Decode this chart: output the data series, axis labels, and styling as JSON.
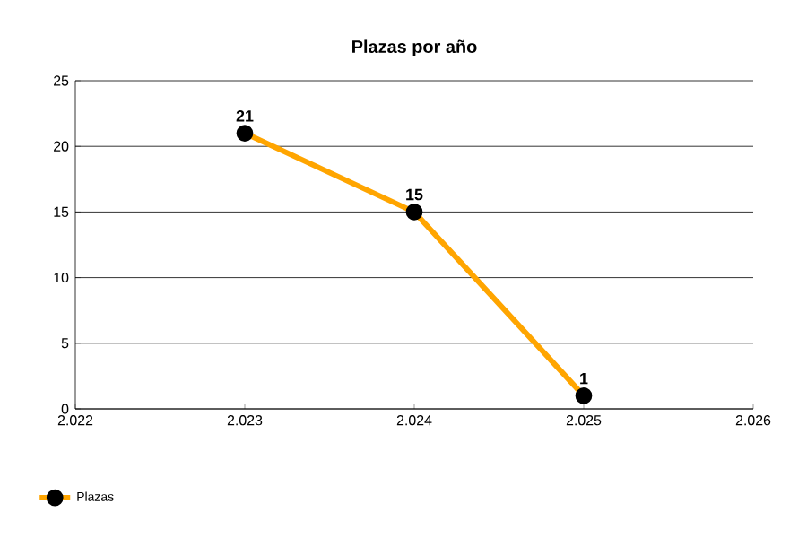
{
  "chart_data": {
    "type": "line",
    "title": "Plazas por año",
    "x": [
      2023,
      2024,
      2025
    ],
    "series": [
      {
        "name": "Plazas",
        "color": "#ffa500",
        "values": [
          21,
          15,
          1
        ]
      }
    ],
    "xlim": [
      2022,
      2026
    ],
    "xticks": [
      {
        "value": 2022,
        "label": "2.022"
      },
      {
        "value": 2023,
        "label": "2.023"
      },
      {
        "value": 2024,
        "label": "2.024"
      },
      {
        "value": 2025,
        "label": "2.025"
      },
      {
        "value": 2026,
        "label": "2.026"
      }
    ],
    "ylim": [
      0,
      25
    ],
    "yticks": [
      0,
      5,
      10,
      15,
      20,
      25
    ],
    "grid": "y",
    "legend": "bottom left",
    "marker": "circle",
    "line_style": "solid",
    "data_labels": true
  }
}
